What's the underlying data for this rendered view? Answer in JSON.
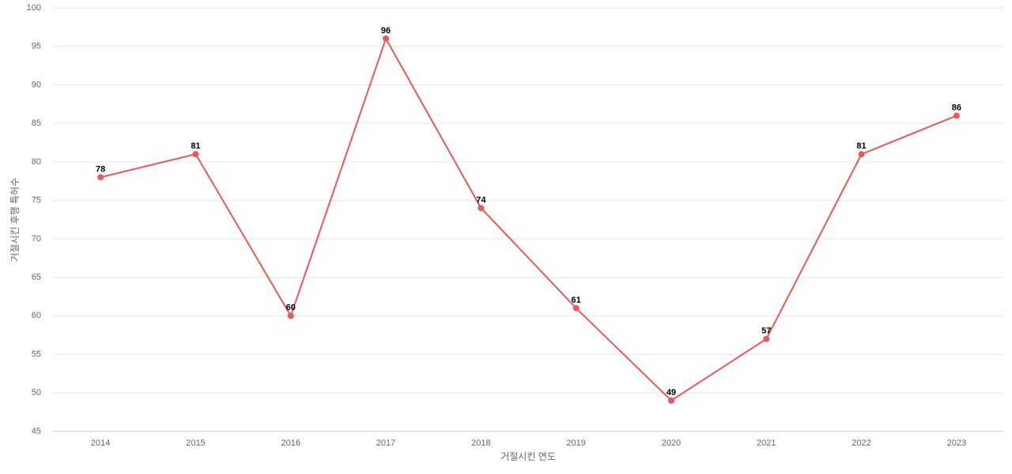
{
  "chart_data": {
    "type": "line",
    "x_label": "거절시킨 연도",
    "y_label": "거절시킨 후행 특허수",
    "categories": [
      "2014",
      "2015",
      "2016",
      "2017",
      "2018",
      "2019",
      "2020",
      "2021",
      "2022",
      "2023"
    ],
    "series": [
      {
        "color": "#e85a5a",
        "values": [
          78,
          81,
          60,
          96,
          74,
          61,
          49,
          57,
          81,
          86
        ]
      }
    ],
    "ylim": [
      45,
      100
    ],
    "yticks": [
      45,
      50,
      55,
      60,
      65,
      70,
      75,
      80,
      85,
      90,
      95,
      100
    ],
    "grid": true
  }
}
